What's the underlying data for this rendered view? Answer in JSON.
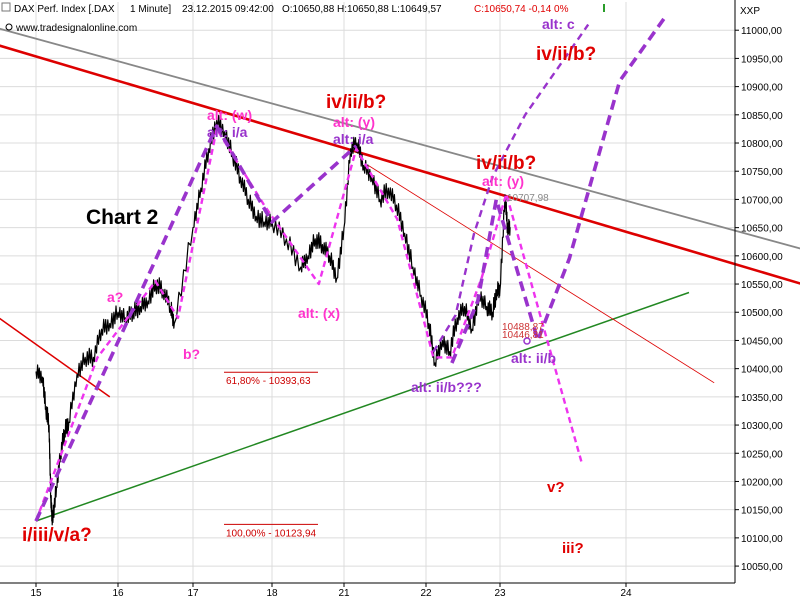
{
  "header": {
    "symbol": "DAX Perf. Index [.DAX",
    "interval": "1 Minute]",
    "datetime": "23.12.2015 09:42:00",
    "ohlc": "O:10650,88 H:10650,88 L:10649,57",
    "change": "C:10650,74 -0,14 0%",
    "website": "www.tradesignalonline.com",
    "exchange": "XXP"
  },
  "colors": {
    "bullish_label": "#ff33cc",
    "bearish_label": "#e00000",
    "wave_purple": "#9933cc",
    "magenta_dash": "#ee33ee",
    "resistance_red": "#dd0000",
    "resistance_gray": "#888888",
    "support_green": "#228822",
    "price": "#000000"
  },
  "chart_data": {
    "type": "line",
    "title": "Chart 2",
    "xlabel": "",
    "ylabel": "",
    "x_ticks": [
      "15",
      "16",
      "17",
      "18",
      "21",
      "22",
      "23",
      "24"
    ],
    "y_ticks": [
      "10050,00",
      "10100,00",
      "10150,00",
      "10200,00",
      "10250,00",
      "10300,00",
      "10350,00",
      "10400,00",
      "10450,00",
      "10500,00",
      "10550,00",
      "10600,00",
      "10650,00",
      "10700,00",
      "10750,00",
      "10800,00",
      "10850,00",
      "10900,00",
      "10950,00",
      "11000,00"
    ],
    "ylim": [
      10020,
      11050
    ],
    "grid": true,
    "series": [
      {
        "name": "",
        "style": "price-line",
        "points": [
          [
            0.0,
            10395
          ],
          [
            0.08,
            10385
          ],
          [
            0.12,
            10330
          ],
          [
            0.16,
            10300
          ],
          [
            0.18,
            10170
          ],
          [
            0.2,
            10130
          ],
          [
            0.25,
            10190
          ],
          [
            0.3,
            10250
          ],
          [
            0.35,
            10290
          ],
          [
            0.4,
            10305
          ],
          [
            0.5,
            10390
          ],
          [
            0.6,
            10420
          ],
          [
            0.7,
            10420
          ],
          [
            0.8,
            10470
          ],
          [
            0.9,
            10480
          ],
          [
            1.0,
            10500
          ],
          [
            1.1,
            10490
          ],
          [
            1.2,
            10500
          ],
          [
            1.3,
            10510
          ],
          [
            1.4,
            10520
          ],
          [
            1.5,
            10550
          ],
          [
            1.6,
            10540
          ],
          [
            1.7,
            10510
          ],
          [
            1.75,
            10480
          ],
          [
            2.0,
            10650
          ],
          [
            2.1,
            10720
          ],
          [
            2.2,
            10790
          ],
          [
            2.3,
            10840
          ],
          [
            2.4,
            10820
          ],
          [
            2.5,
            10780
          ],
          [
            2.6,
            10740
          ],
          [
            2.7,
            10700
          ],
          [
            2.8,
            10670
          ],
          [
            2.9,
            10660
          ],
          [
            3.0,
            10660
          ],
          [
            3.2,
            10630
          ],
          [
            3.4,
            10580
          ],
          [
            3.5,
            10600
          ],
          [
            3.6,
            10630
          ],
          [
            3.7,
            10620
          ],
          [
            3.8,
            10600
          ],
          [
            3.9,
            10560
          ],
          [
            4.0,
            10650
          ],
          [
            4.08,
            10790
          ],
          [
            4.16,
            10800
          ],
          [
            4.24,
            10760
          ],
          [
            4.34,
            10740
          ],
          [
            4.44,
            10700
          ],
          [
            4.54,
            10720
          ],
          [
            4.64,
            10690
          ],
          [
            4.74,
            10640
          ],
          [
            4.84,
            10580
          ],
          [
            4.94,
            10530
          ],
          [
            5.04,
            10480
          ],
          [
            5.12,
            10410
          ],
          [
            5.22,
            10450
          ],
          [
            5.32,
            10430
          ],
          [
            5.42,
            10490
          ],
          [
            5.52,
            10510
          ],
          [
            5.62,
            10470
          ],
          [
            5.72,
            10530
          ],
          [
            5.82,
            10510
          ],
          [
            5.9,
            10500
          ],
          [
            5.96,
            10540
          ],
          [
            6.0,
            10540
          ],
          [
            6.04,
            10707.98
          ],
          [
            6.06,
            10650
          ],
          [
            6.08,
            10650.74
          ]
        ]
      },
      {
        "name": "",
        "style": "wave-magenta",
        "points": [
          [
            0.0,
            10130
          ],
          [
            0.75,
            10420
          ],
          [
            1.5,
            10555
          ],
          [
            1.8,
            10490
          ],
          [
            2.3,
            10825
          ],
          [
            2.9,
            10690
          ],
          [
            3.65,
            10550
          ],
          [
            4.15,
            10790
          ],
          [
            4.65,
            10665
          ],
          [
            5.1,
            10420
          ],
          [
            5.35,
            10420
          ],
          [
            5.75,
            10560
          ],
          [
            6.05,
            10710
          ],
          [
            6.35,
            10470
          ],
          [
            6.65,
            10232
          ]
        ]
      },
      {
        "name": "",
        "style": "wave-purple",
        "points": [
          [
            0.0,
            10130
          ],
          [
            2.3,
            10830
          ],
          [
            3.0,
            10660
          ],
          [
            4.15,
            10795
          ]
        ]
      },
      {
        "name": "",
        "style": "wave-purple",
        "points": [
          [
            5.35,
            10410
          ],
          [
            5.7,
            10520
          ],
          [
            5.95,
            10700
          ],
          [
            6.3,
            10450
          ],
          [
            6.55,
            10595
          ],
          [
            6.95,
            10910
          ],
          [
            7.3,
            11020
          ]
        ]
      },
      {
        "name": "",
        "style": "wave-purple-thin",
        "points": [
          [
            5.1,
            10430
          ],
          [
            5.4,
            10495
          ],
          [
            5.65,
            10640
          ],
          [
            5.9,
            10740
          ],
          [
            6.2,
            10850
          ],
          [
            6.7,
            11010
          ]
        ]
      },
      {
        "name": "",
        "style": "resistance-red",
        "points": [
          [
            -0.5,
            10975
          ],
          [
            9.0,
            10510
          ]
        ]
      },
      {
        "name": "",
        "style": "resistance-gray",
        "points": [
          [
            -0.5,
            11005
          ],
          [
            9.0,
            10575
          ]
        ]
      },
      {
        "name": "",
        "style": "support-green",
        "points": [
          [
            0.0,
            10130
          ],
          [
            7.5,
            10535
          ]
        ]
      },
      {
        "name": "",
        "style": "thin-red",
        "points": [
          [
            -0.5,
            10495
          ],
          [
            0.9,
            10350
          ]
        ]
      },
      {
        "name": "",
        "style": "thin-red-faint",
        "points": [
          [
            4.3,
            10760
          ],
          [
            7.7,
            10375
          ]
        ]
      }
    ],
    "fibonacci": [
      {
        "label": "61,80% - 10393,63",
        "value": 10393.63
      },
      {
        "label": "100,00% - 10123,94",
        "value": 10123.94
      }
    ],
    "price_tags": [
      "10707,98",
      "10488,87",
      "10446,81"
    ],
    "annotations": [
      {
        "text": "Chart 2",
        "kind": "title"
      },
      {
        "text": "i/iii/v/a?",
        "kind": "red"
      },
      {
        "text": "a?",
        "kind": "pink"
      },
      {
        "text": "b?",
        "kind": "pink"
      },
      {
        "text": "alt: (w)",
        "kind": "pink"
      },
      {
        "text": "alt: i/a",
        "kind": "purple"
      },
      {
        "text": "iv/ii/b?",
        "kind": "red"
      },
      {
        "text": "alt: (y)",
        "kind": "pink"
      },
      {
        "text": "alt: i/a",
        "kind": "purple"
      },
      {
        "text": "alt: (x)",
        "kind": "pink"
      },
      {
        "text": "iv/ii/b?",
        "kind": "red"
      },
      {
        "text": "alt: (y)",
        "kind": "pink"
      },
      {
        "text": "alt: ii/b???",
        "kind": "purple"
      },
      {
        "text": "alt: ii/b",
        "kind": "purple"
      },
      {
        "text": "alt: c",
        "kind": "purple"
      },
      {
        "text": "iv/ii/b?",
        "kind": "red"
      },
      {
        "text": "v?",
        "kind": "red"
      },
      {
        "text": "iii?",
        "kind": "red"
      }
    ]
  }
}
